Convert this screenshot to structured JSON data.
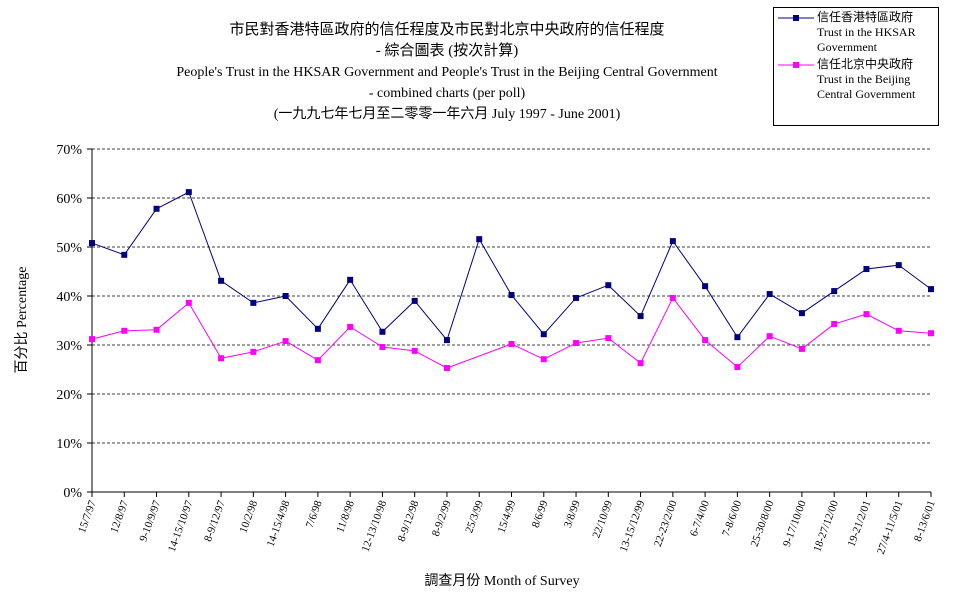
{
  "chart_data": {
    "type": "line",
    "title": [
      "市民對香港特區政府的信任程度及市民對北京中央政府的信任程度",
      "- 綜合圖表 (按次計算)",
      "People's Trust in the HKSAR Government and People's Trust in the Beijing Central Government",
      "- combined charts (per poll)",
      "(一九九七年七月至二零零一年六月 July 1997 - June 2001)"
    ],
    "y_label": "百分比 Percentage",
    "x_label": "調查月份 Month of Survey",
    "categories": [
      "15/7/97",
      "12/8/97",
      "9-10/9/97",
      "14-15/10/97",
      "8-9/12/97",
      "10/2/98",
      "14-15/4/98",
      "7/6/98",
      "11/8/98",
      "12-13/10/98",
      "8-9/12/98",
      "8-9/2/99",
      "25/3/99",
      "15/4/99",
      "8/6/99",
      "3/8/99",
      "22/10/99",
      "13-15/12/99",
      "22-23/2/00",
      "6-7/4/00",
      "7-8/6/00",
      "25-30/8/00",
      "9-17/10/00",
      "18-27/12/00",
      "19-21/2/01",
      "27/4-11/5/01",
      "8-13/6/01"
    ],
    "series": [
      {
        "name": "信任香港特區政府\nTrust in the HKSAR\nGovernment",
        "color": "#000080",
        "values": [
          50.8,
          48.4,
          57.8,
          61.2,
          43.1,
          38.6,
          40.0,
          33.3,
          43.3,
          32.7,
          39.0,
          31.0,
          51.6,
          40.2,
          32.2,
          39.6,
          42.2,
          35.9,
          51.2,
          42.0,
          31.6,
          40.4,
          36.5,
          41.0,
          45.5,
          46.3,
          41.4
        ]
      },
      {
        "name": "信任北京中央政府\nTrust in the Beijing\nCentral Government",
        "color": "#ff00ff",
        "values": [
          31.2,
          32.9,
          33.1,
          38.6,
          27.3,
          28.6,
          30.8,
          26.9,
          33.7,
          29.6,
          28.8,
          25.3,
          null,
          30.2,
          27.1,
          30.4,
          31.4,
          26.3,
          39.6,
          31.0,
          25.5,
          31.8,
          29.2,
          34.3,
          36.3,
          32.9,
          32.4
        ]
      }
    ],
    "ylim": [
      0,
      70
    ],
    "yticks": [
      {
        "value": 0,
        "label": "0%"
      },
      {
        "value": 10,
        "label": "10%"
      },
      {
        "value": 20,
        "label": "20%"
      },
      {
        "value": 30,
        "label": "30%"
      },
      {
        "value": 40,
        "label": "40%"
      },
      {
        "value": 50,
        "label": "50%"
      },
      {
        "value": 60,
        "label": "60%"
      },
      {
        "value": 70,
        "label": "70%"
      }
    ],
    "grid": true,
    "legend": "top-right"
  }
}
